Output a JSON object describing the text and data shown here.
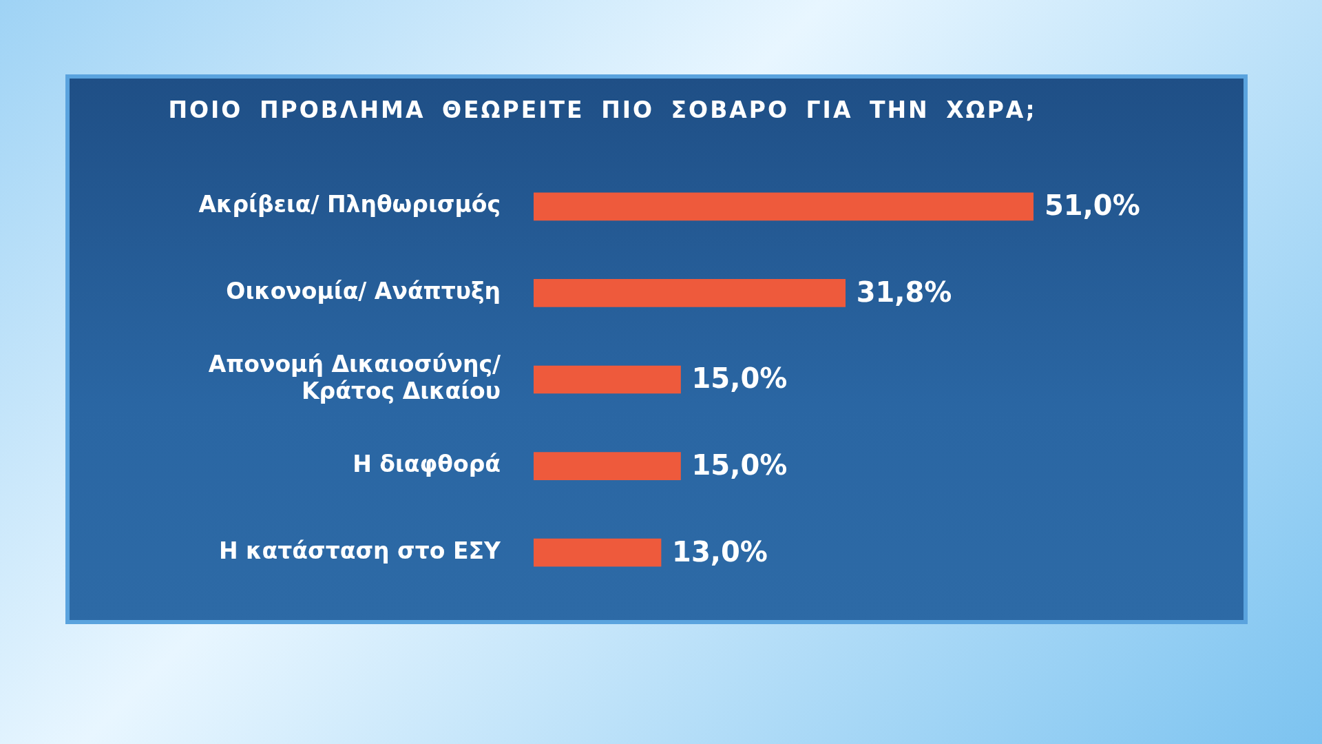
{
  "chart_data": {
    "type": "bar",
    "orientation": "horizontal",
    "title": "ΠΟΙΟ ΠΡΟΒΛΗΜΑ ΘΕΩΡΕΙΤΕ ΠΙΟ ΣΟΒΑΡΟ ΓΙΑ ΤΗΝ ΧΩΡΑ;",
    "categories": [
      "Ακρίβεια/ Πληθωρισμός",
      "Οικονομία/ Ανάπτυξη",
      "Απονομή Δικαιοσύνης/ Κράτος Δικαίου",
      "Η διαφθορά",
      "Η κατάσταση στο ΕΣΥ"
    ],
    "values": [
      51.0,
      31.8,
      15.0,
      15.0,
      13.0
    ],
    "value_labels": [
      "51,0%",
      "31,8%",
      "15,0%",
      "15,0%",
      "13,0%"
    ],
    "color": "#ee5a3c",
    "legend": false,
    "tick_labels": "y"
  }
}
